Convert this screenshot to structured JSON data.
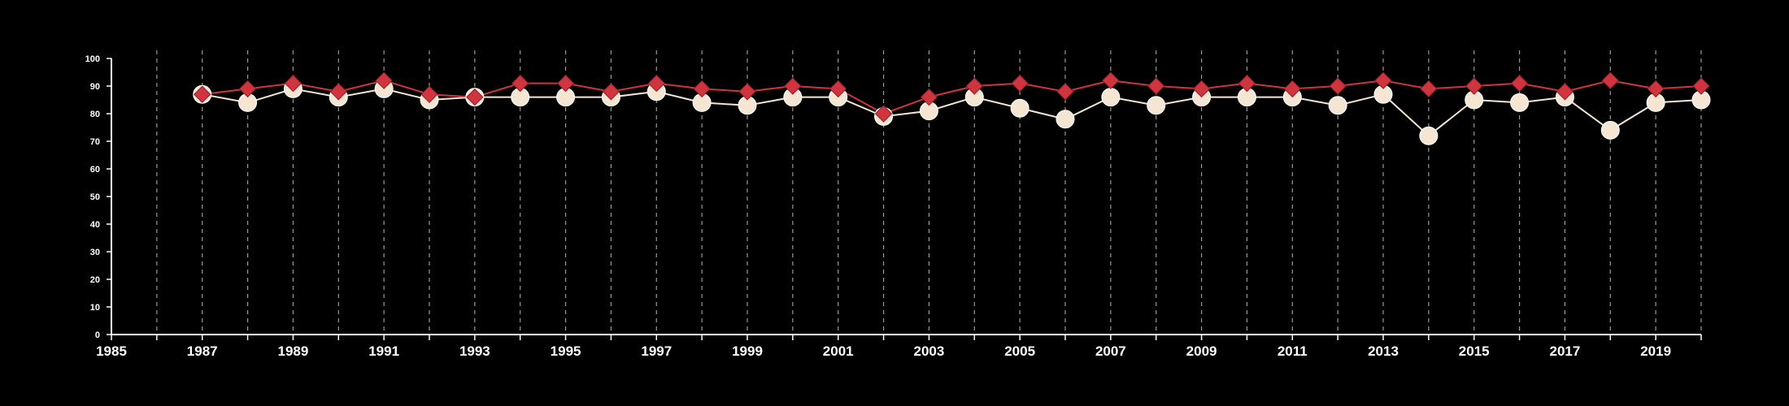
{
  "chart_data": {
    "type": "line",
    "title": "",
    "xlabel": "",
    "ylabel": "",
    "xlim": [
      1985,
      2020
    ],
    "ylim": [
      0,
      100
    ],
    "y_ticks": [
      0,
      10,
      20,
      30,
      40,
      50,
      60,
      70,
      80,
      90,
      100
    ],
    "x_tick_labels": [
      1985,
      1987,
      1989,
      1991,
      1993,
      1995,
      1997,
      1999,
      2001,
      2003,
      2005,
      2007,
      2009,
      2011,
      2013,
      2015,
      2017,
      2019
    ],
    "vertical_gridlines": "every year, dashed",
    "legend": "none",
    "x": [
      1987,
      1988,
      1989,
      1990,
      1991,
      1992,
      1993,
      1994,
      1995,
      1996,
      1997,
      1998,
      1999,
      2000,
      2001,
      2002,
      2003,
      2004,
      2005,
      2006,
      2007,
      2008,
      2009,
      2010,
      2011,
      2012,
      2013,
      2014,
      2015,
      2016,
      2017,
      2018,
      2019,
      2020
    ],
    "series": [
      {
        "marker": "circle",
        "color": "#f5e6d3",
        "values": [
          87,
          84,
          89,
          86,
          89,
          85,
          86,
          86,
          86,
          86,
          88,
          84,
          83,
          86,
          86,
          79,
          81,
          86,
          82,
          78,
          86,
          83,
          86,
          86,
          86,
          83,
          87,
          72,
          85,
          84,
          86,
          74,
          84,
          85
        ]
      },
      {
        "marker": "diamond",
        "color": "#d0353f",
        "values": [
          87,
          89,
          91,
          88,
          92,
          87,
          86,
          91,
          91,
          88,
          91,
          89,
          88,
          90,
          89,
          80,
          86,
          90,
          91,
          88,
          92,
          90,
          89,
          91,
          89,
          90,
          92,
          89,
          90,
          91,
          88,
          92,
          89,
          90
        ]
      }
    ]
  }
}
